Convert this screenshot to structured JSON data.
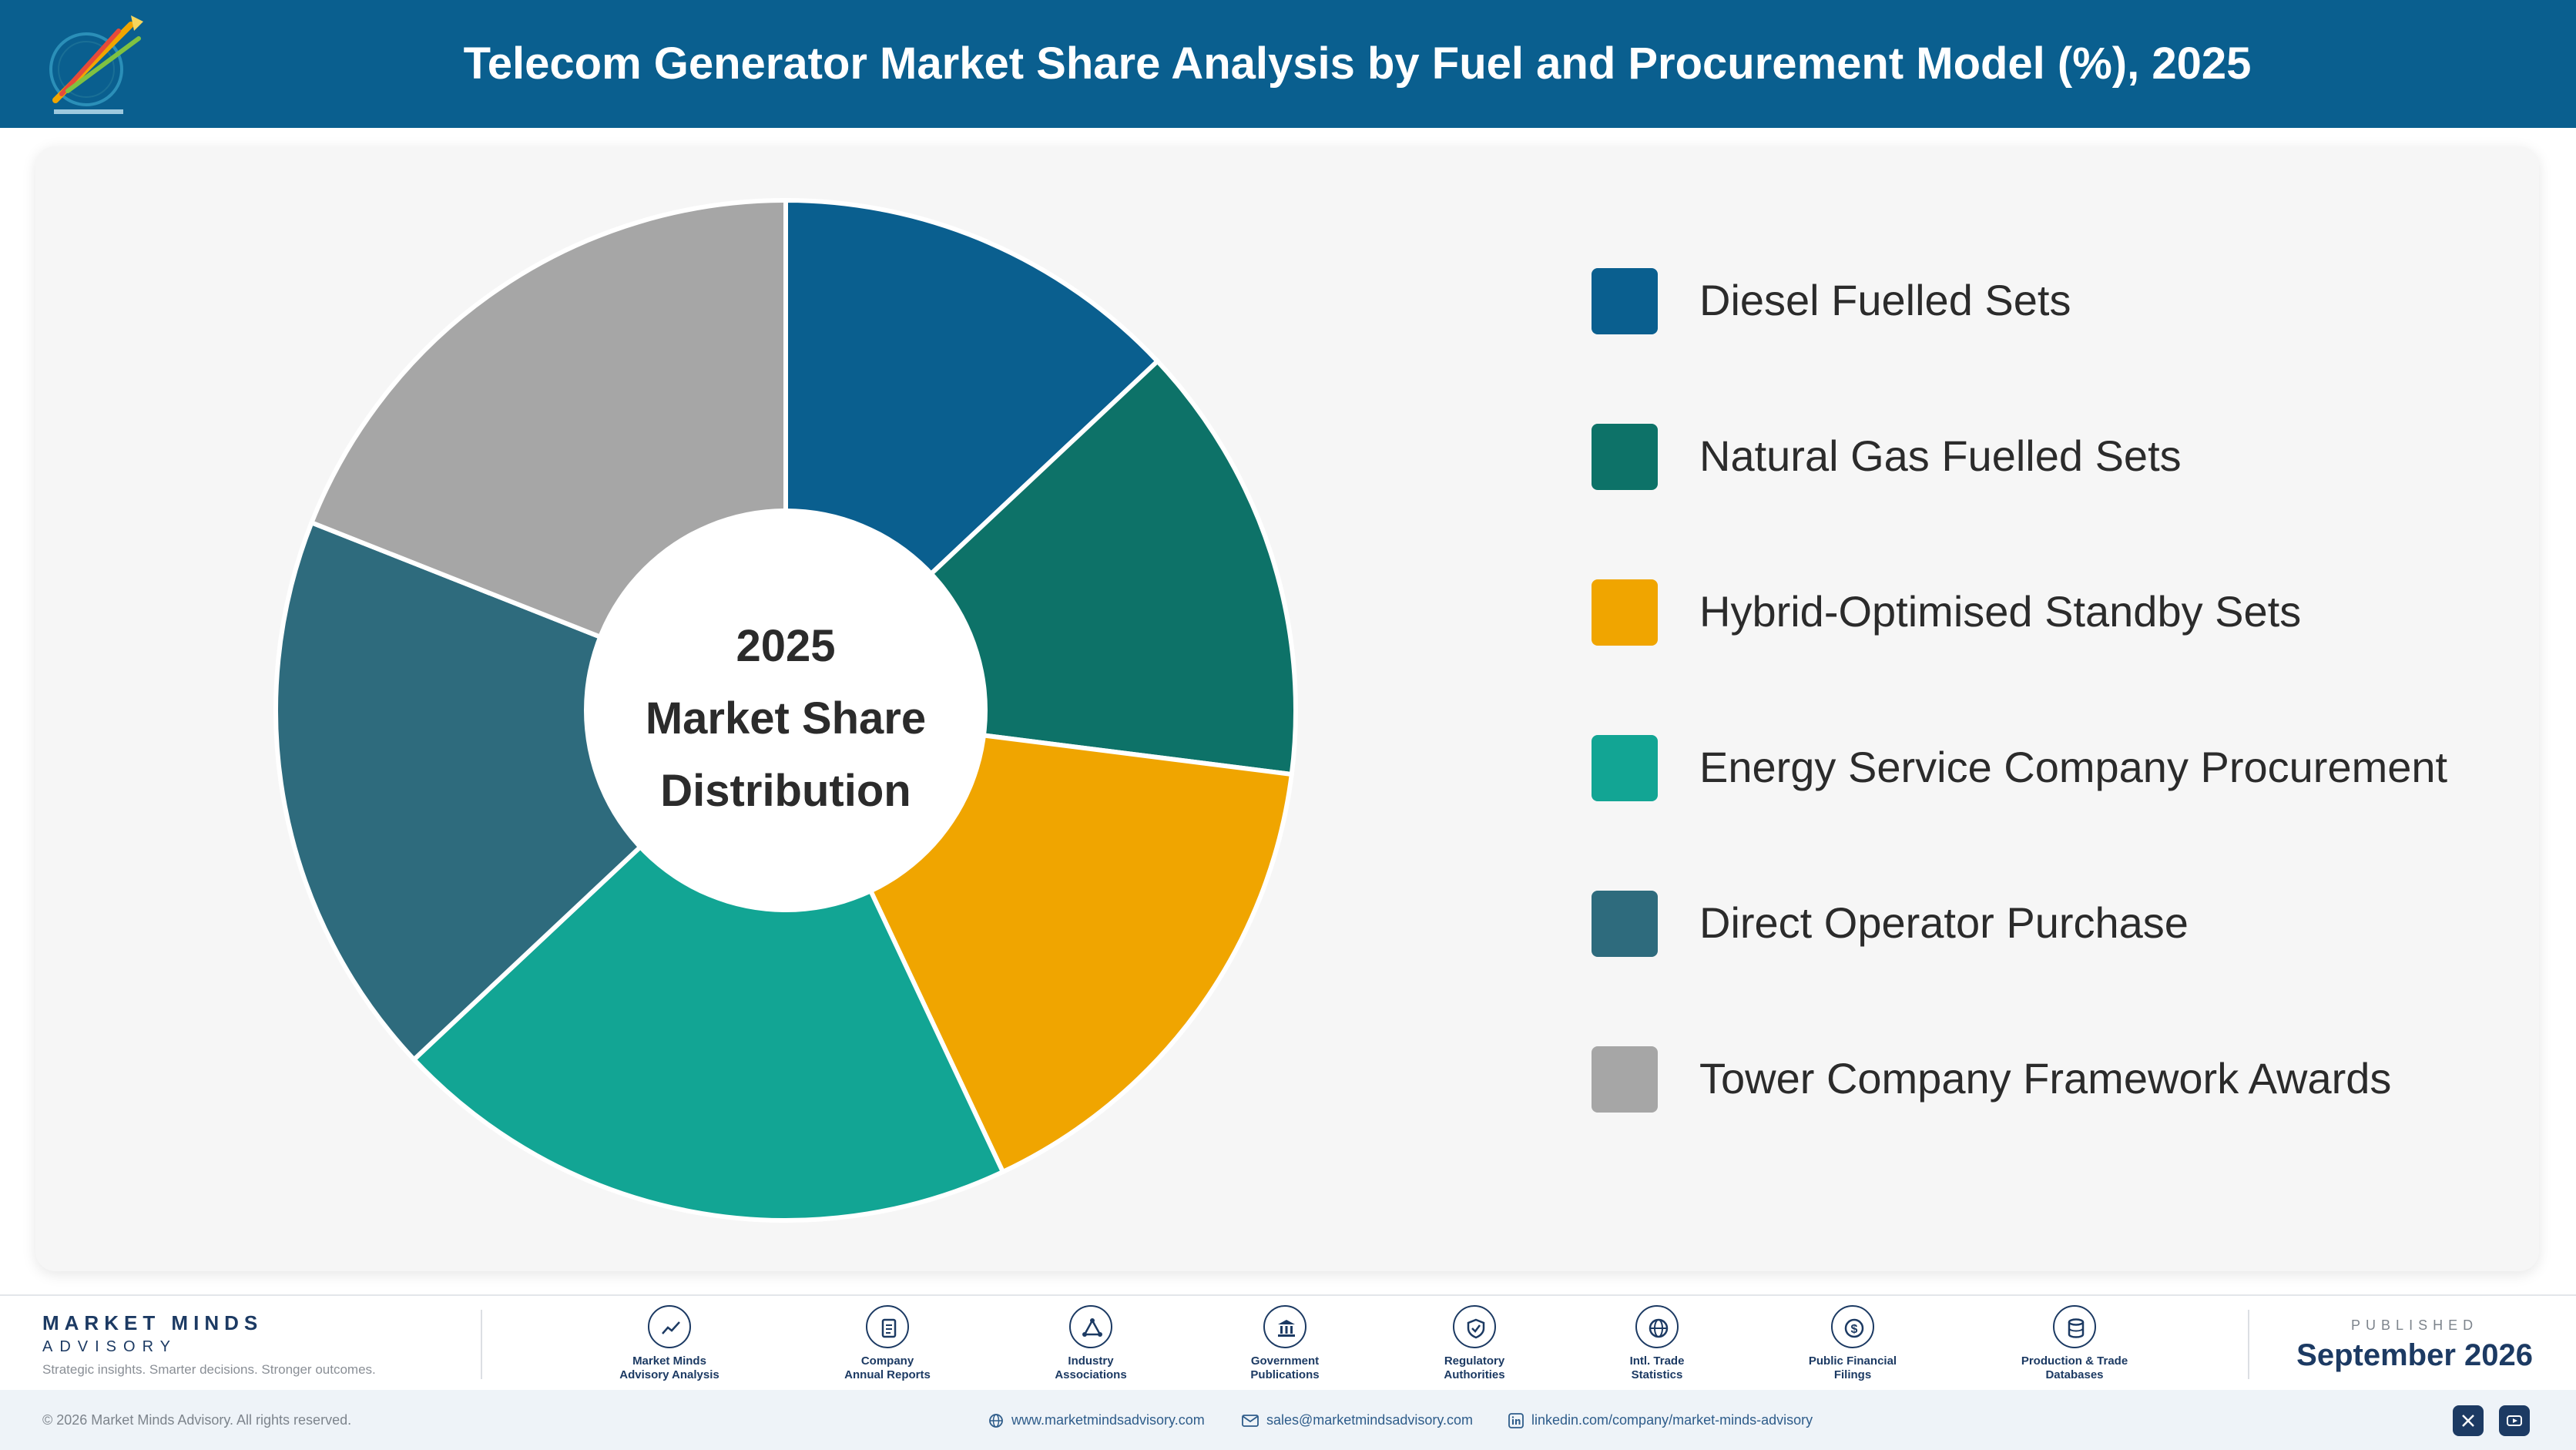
{
  "header": {
    "title": "Telecom Generator Market Share Analysis by Fuel and Procurement Model (%), 2025"
  },
  "chart_data": {
    "type": "pie",
    "style": "donut",
    "title": "Telecom Generator Market Share Analysis by Fuel and Procurement Model (%), 2025",
    "center_label": [
      "2025",
      "Market Share",
      "Distribution"
    ],
    "categories": [
      "Diesel Fuelled Sets",
      "Natural Gas Fuelled Sets",
      "Hybrid-Optimised Standby Sets",
      "Energy Service Company Procurement",
      "Direct Operator Purchase",
      "Tower Company Framework Awards"
    ],
    "values": [
      13,
      14,
      16,
      20,
      18,
      19
    ],
    "colors": [
      "#0a5f8f",
      "#0d7268",
      "#f0a500",
      "#12a594",
      "#2e6b7d",
      "#a6a6a6"
    ],
    "legend_position": "right"
  },
  "footer": {
    "brand_name": "MARKET MINDS",
    "brand_sub": "ADVISORY",
    "tagline": "Strategic insights. Smarter decisions. Stronger outcomes.",
    "sources": [
      {
        "line1": "Market Minds",
        "line2": "Advisory Analysis",
        "icon": "chart-line-icon"
      },
      {
        "line1": "Company",
        "line2": "Annual Reports",
        "icon": "document-icon"
      },
      {
        "line1": "Industry",
        "line2": "Associations",
        "icon": "network-icon"
      },
      {
        "line1": "Government",
        "line2": "Publications",
        "icon": "government-building-icon"
      },
      {
        "line1": "Regulatory",
        "line2": "Authorities",
        "icon": "shield-icon"
      },
      {
        "line1": "Intl. Trade",
        "line2": "Statistics",
        "icon": "globe-icon"
      },
      {
        "line1": "Public Financial",
        "line2": "Filings",
        "icon": "dollar-coin-icon"
      },
      {
        "line1": "Production & Trade",
        "line2": "Databases",
        "icon": "database-icon"
      }
    ],
    "published_label": "PUBLISHED",
    "published_date": "September 2026"
  },
  "bottom_bar": {
    "copyright": "© 2026 Market Minds Advisory. All rights reserved.",
    "website": "www.marketmindsadvisory.com",
    "email": "sales@marketmindsadvisory.com",
    "linkedin": "linkedin.com/company/market-minds-advisory"
  }
}
